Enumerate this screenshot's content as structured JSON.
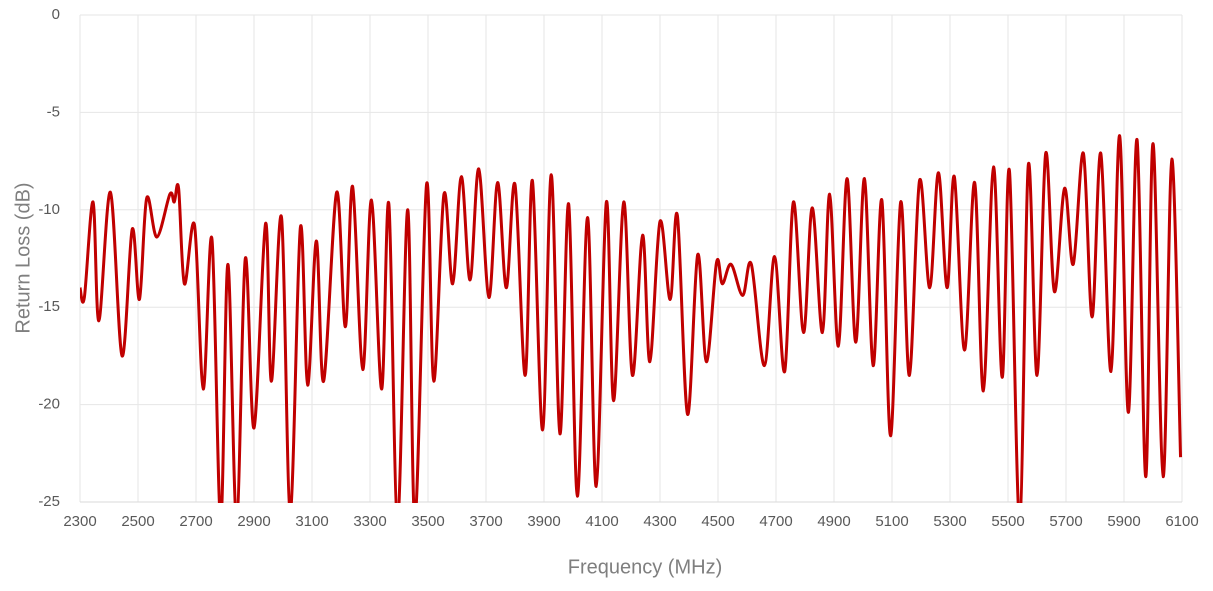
{
  "chart_data": {
    "type": "line",
    "x_label": "Frequency (MHz)",
    "y_label": "Return Loss (dB)",
    "xlim": [
      2300,
      6100
    ],
    "ylim": [
      -25,
      0
    ],
    "xticks": [
      2300,
      2500,
      2700,
      2900,
      3100,
      3300,
      3500,
      3700,
      3900,
      4100,
      4300,
      4500,
      4700,
      4900,
      5100,
      5300,
      5500,
      5700,
      5900,
      6100
    ],
    "yticks": [
      0,
      -5,
      -10,
      -15,
      -20,
      -25
    ],
    "grid": true,
    "x": [
      2300,
      2315,
      2345,
      2365,
      2405,
      2445,
      2480,
      2505,
      2530,
      2565,
      2610,
      2625,
      2640,
      2660,
      2695,
      2725,
      2755,
      2785,
      2810,
      2840,
      2870,
      2900,
      2940,
      2960,
      2995,
      3025,
      3060,
      3085,
      3115,
      3140,
      3185,
      3215,
      3240,
      3275,
      3305,
      3340,
      3365,
      3395,
      3430,
      3455,
      3495,
      3520,
      3555,
      3585,
      3615,
      3645,
      3675,
      3710,
      3740,
      3770,
      3800,
      3835,
      3860,
      3895,
      3925,
      3955,
      3985,
      4015,
      4050,
      4080,
      4115,
      4140,
      4175,
      4205,
      4240,
      4265,
      4300,
      4335,
      4360,
      4395,
      4430,
      4460,
      4495,
      4515,
      4545,
      4585,
      4615,
      4660,
      4695,
      4730,
      4760,
      4795,
      4825,
      4860,
      4885,
      4915,
      4945,
      4975,
      5005,
      5035,
      5065,
      5095,
      5130,
      5160,
      5195,
      5230,
      5260,
      5290,
      5315,
      5350,
      5385,
      5415,
      5450,
      5480,
      5505,
      5540,
      5570,
      5600,
      5630,
      5660,
      5695,
      5725,
      5760,
      5790,
      5820,
      5855,
      5885,
      5915,
      5945,
      5975,
      6000,
      6035,
      6065,
      6095
    ],
    "series": [
      {
        "name": "Return Loss",
        "color": "#c00000",
        "values": [
          -14,
          -14.5,
          -9.6,
          -15.7,
          -9.1,
          -17.5,
          -11,
          -14.6,
          -9.4,
          -11.4,
          -9.2,
          -9.6,
          -8.9,
          -13.8,
          -10.8,
          -19.2,
          -11.5,
          -26,
          -12.8,
          -26,
          -12.5,
          -21.2,
          -10.7,
          -18.8,
          -10.4,
          -25.5,
          -10.9,
          -19,
          -11.6,
          -18.8,
          -9.1,
          -16,
          -8.8,
          -18.2,
          -9.5,
          -19.2,
          -9.7,
          -26,
          -10,
          -26,
          -8.7,
          -18.8,
          -9.2,
          -13.8,
          -8.3,
          -13.6,
          -7.9,
          -14.5,
          -8.6,
          -14,
          -8.7,
          -18.5,
          -8.5,
          -21.3,
          -8.2,
          -21.5,
          -9.7,
          -24.7,
          -10.4,
          -24.2,
          -9.6,
          -19.8,
          -9.6,
          -18.5,
          -11.3,
          -17.8,
          -10.6,
          -14.6,
          -10.3,
          -20.5,
          -12.3,
          -17.8,
          -12.7,
          -13.8,
          -12.8,
          -14.4,
          -12.8,
          -18,
          -12.4,
          -18.3,
          -9.6,
          -16.3,
          -9.9,
          -16.3,
          -9.2,
          -17,
          -8.4,
          -16.8,
          -8.4,
          -18,
          -9.5,
          -21.6,
          -9.6,
          -18.5,
          -8.5,
          -14,
          -8.1,
          -14,
          -8.3,
          -17.2,
          -8.6,
          -19.3,
          -7.8,
          -18.6,
          -8,
          -26,
          -7.7,
          -18.5,
          -7.1,
          -14.2,
          -8.9,
          -12.8,
          -7.1,
          -15.5,
          -7.1,
          -18.3,
          -6.2,
          -20.4,
          -6.4,
          -23.7,
          -6.6,
          -23.7,
          -7.4,
          -22.7
        ]
      }
    ]
  }
}
